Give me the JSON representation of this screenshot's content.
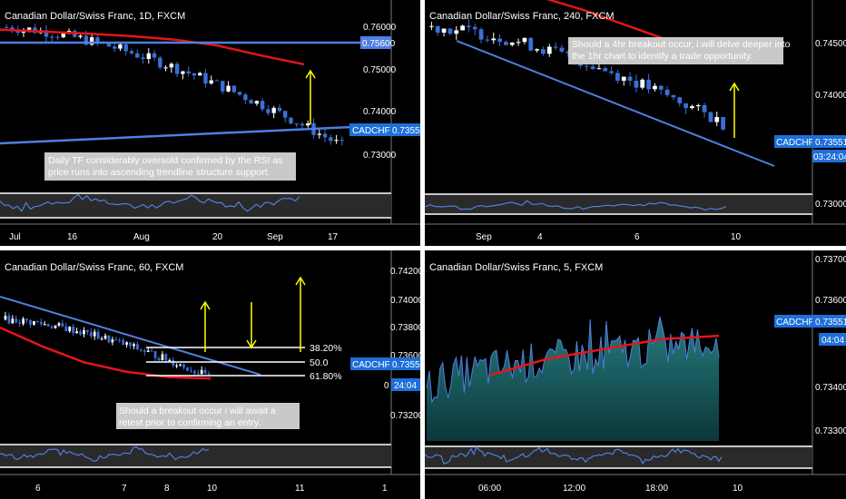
{
  "colors": {
    "background": "#000000",
    "divider": "#ffffff",
    "candle_up": "#ffffff",
    "candle_down": "#3b6fd6",
    "trendline": "#4f7fe0",
    "moving_average": "#e8141b",
    "arrow": "#ffff00",
    "price_badge": "#1e6fd9",
    "note_box": "#c9c9c9",
    "area_fill_top": "#2c8a8e",
    "rsi_line": "#4f7fe0",
    "rsi_band": "#2a2a2a"
  },
  "panels": [
    {
      "id": "daily",
      "title": "Canadian Dollar/Swiss Franc, 1D, FXCM",
      "price_ticks": [
        "0.76000",
        "0.75600",
        "0.75000",
        "0.74000",
        "0.73551",
        "0.73000"
      ],
      "highlight_tick": "0.75600",
      "badge_symbol": "CADCHF",
      "badge_price": "0.73551",
      "time_ticks": [
        "Jul",
        "16",
        "Aug",
        "20",
        "Sep",
        "17"
      ],
      "note": "Daily TF considerably oversold confirmed by the RSI as price runs into ascending trendline structure support."
    },
    {
      "id": "h4",
      "title": "Canadian Dollar/Swiss Franc, 240, FXCM",
      "price_ticks": [
        "0.74500",
        "0.74000",
        "0.73551",
        "0.73000"
      ],
      "badge_symbol": "CADCHF",
      "badge_price": "0.73551",
      "badge_timer": "03:24:04",
      "time_ticks": [
        "Sep",
        "4",
        "6",
        "10"
      ],
      "note": "Should a 4hr breakout occur, i will delve deeper into the 1hr chart to identify a trade opportunity."
    },
    {
      "id": "h1",
      "title": "Canadian Dollar/Swiss Franc, 60, FXCM",
      "price_ticks": [
        "0.74200",
        "0.74000",
        "0.73800",
        "0.73600",
        "0.73551",
        "0",
        "0.73200"
      ],
      "badge_symbol": "CADCHF",
      "badge_price": "0.73551",
      "badge_timer": "24:04",
      "fib_levels": [
        "38.20%",
        "50.0",
        "61.80%"
      ],
      "time_ticks": [
        "6",
        "7",
        "8",
        "10",
        "11",
        "1"
      ],
      "note": "Should a breakout occur i will await a retest prior to confirming an entry."
    },
    {
      "id": "m5",
      "title": "Canadian Dollar/Swiss Franc, 5, FXCM",
      "price_ticks": [
        "0.73700",
        "0.73600",
        "0.73551",
        "0.73400",
        "0.73300"
      ],
      "badge_symbol": "CADCHF",
      "badge_price": "0.73551",
      "badge_timer": "04:04",
      "time_ticks": [
        "06:00",
        "12:00",
        "18:00",
        "10"
      ]
    }
  ],
  "chart_data": [
    {
      "type": "candlestick",
      "title": "Canadian Dollar/Swiss Franc, 1D, FXCM",
      "ylim": [
        0.7275,
        0.7635
      ],
      "x_ticks": [
        "Jul",
        "16",
        "Aug",
        "20",
        "Sep",
        "17"
      ],
      "bars": 60,
      "start_close": 0.7595,
      "end_close": 0.73551,
      "horizontal_line": 0.756,
      "trendline": {
        "from": 0.7318,
        "to": 0.7356
      },
      "moving_average_levels": [
        0.759,
        0.7586,
        0.7582,
        0.7577,
        0.757,
        0.7558,
        0.7538,
        0.752
      ],
      "indicator": "RSI"
    },
    {
      "type": "candlestick",
      "title": "Canadian Dollar/Swiss Franc, 240, FXCM",
      "ylim": [
        0.7285,
        0.7485
      ],
      "x_ticks": [
        "Sep",
        "4",
        "6",
        "10"
      ],
      "bars": 48,
      "start_close": 0.7463,
      "end_close": 0.73551,
      "trendline": {
        "from": 0.7458,
        "to": 0.7336
      },
      "moving_average_levels": [
        0.7498,
        0.7482,
        0.7463,
        0.7444,
        0.7425
      ],
      "indicator": "RSI"
    },
    {
      "type": "candlestick",
      "title": "Canadian Dollar/Swiss Franc, 60, FXCM",
      "ylim": [
        0.731,
        0.743
      ],
      "x_ticks": [
        "6",
        "7",
        "8",
        "10",
        "11",
        "1"
      ],
      "bars": 58,
      "start_close": 0.7398,
      "end_close": 0.73551,
      "trendline": {
        "from": 0.7399,
        "to": 0.7349
      },
      "fibonacci": [
        {
          "label": "38.20%",
          "price": 0.7367
        },
        {
          "label": "50.0",
          "price": 0.7356
        },
        {
          "label": "61.80%",
          "price": 0.7348
        }
      ],
      "moving_average_levels": [
        0.7392,
        0.7378,
        0.7366,
        0.7359,
        0.7355,
        0.7354
      ],
      "indicator": "RSI"
    },
    {
      "type": "area",
      "title": "Canadian Dollar/Swiss Franc, 5, FXCM",
      "ylim": [
        0.7325,
        0.7375
      ],
      "x_ticks": [
        "06:00",
        "12:00",
        "18:00",
        "10"
      ],
      "points": 110,
      "start_close": 0.734,
      "end_close": 0.73551,
      "moving_average_levels": [
        0.7345,
        0.735,
        0.7353,
        0.7356,
        0.7357
      ],
      "indicator": "RSI"
    }
  ]
}
